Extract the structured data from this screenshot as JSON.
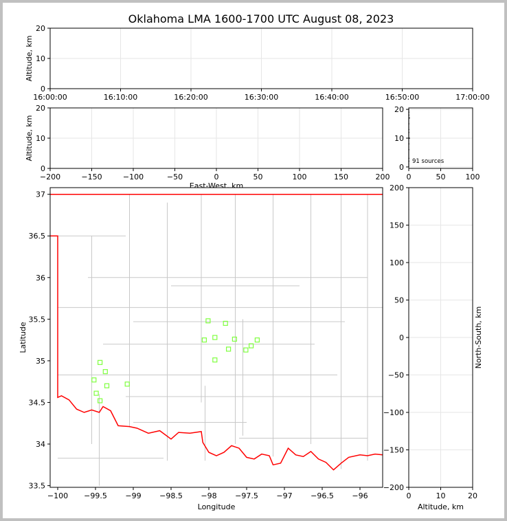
{
  "figure": {
    "title": "Oklahoma LMA 1600-1700 UTC August 08, 2023"
  },
  "chart_data": [
    {
      "panel": "altitude-time",
      "type": "scatter",
      "title": "Oklahoma LMA 1600-1700 UTC August 08, 2023",
      "xlabel": "",
      "ylabel": "Altitude, km",
      "xlim": [
        "16:00:00",
        "17:00:00"
      ],
      "ylim": [
        0,
        20
      ],
      "xticks": [
        "16:00:00",
        "16:10:00",
        "16:20:00",
        "16:30:00",
        "16:40:00",
        "16:50:00",
        "17:00:00"
      ],
      "yticks": [
        0,
        10,
        20
      ],
      "grid": true,
      "points": []
    },
    {
      "panel": "east-west-altitude",
      "type": "scatter",
      "xlabel": "East-West, km",
      "ylabel": "Altitude, km",
      "xlim": [
        -200,
        200
      ],
      "ylim": [
        0,
        20
      ],
      "xticks": [
        -200,
        -150,
        -100,
        -50,
        0,
        50,
        100,
        150,
        200
      ],
      "yticks": [
        0,
        10,
        20
      ],
      "grid": true,
      "points": []
    },
    {
      "panel": "altitude-histogram",
      "type": "line",
      "xlim": [
        0,
        100
      ],
      "ylim": [
        0,
        20
      ],
      "xticks": [
        0,
        50,
        100
      ],
      "yticks": [
        0,
        10,
        20
      ],
      "annotation": "91 sources",
      "grid": true,
      "counts_by_altitude": [
        {
          "alt": 2,
          "count": 1
        },
        {
          "alt": 3,
          "count": 1
        },
        {
          "alt": 6,
          "count": 1
        },
        {
          "alt": 8,
          "count": 1
        },
        {
          "alt": 10,
          "count": 2
        },
        {
          "alt": 12,
          "count": 1
        },
        {
          "alt": 13,
          "count": 1
        },
        {
          "alt": 15,
          "count": 1
        },
        {
          "alt": 17,
          "count": 2
        },
        {
          "alt": 18,
          "count": 1
        },
        {
          "alt": 19,
          "count": 1
        }
      ]
    },
    {
      "panel": "plan-view-map",
      "type": "scatter",
      "xlabel": "Longitude",
      "ylabel": "Latitude",
      "xlim": [
        -100.1,
        -95.7
      ],
      "ylim": [
        33.5,
        37.1
      ],
      "xticks": [
        -100.0,
        -99.5,
        -99.0,
        -98.5,
        -98.0,
        -97.5,
        -97.0,
        -96.5,
        -96.0
      ],
      "yticks": [
        33.5,
        34.0,
        34.5,
        35.0,
        35.5,
        36.0,
        36.5,
        37.0
      ],
      "marker_color": "#7fff3f",
      "state_border_color": "#ff0000",
      "county_line_color": "#c8c8c8",
      "points": [
        {
          "lon": -98.01,
          "lat": 35.48
        },
        {
          "lon": -97.78,
          "lat": 35.45
        },
        {
          "lon": -98.06,
          "lat": 35.25
        },
        {
          "lon": -97.92,
          "lat": 35.28
        },
        {
          "lon": -97.66,
          "lat": 35.26
        },
        {
          "lon": -97.36,
          "lat": 35.25
        },
        {
          "lon": -97.74,
          "lat": 35.14
        },
        {
          "lon": -97.51,
          "lat": 35.13
        },
        {
          "lon": -97.44,
          "lat": 35.18
        },
        {
          "lon": -97.92,
          "lat": 35.01
        },
        {
          "lon": -99.44,
          "lat": 34.98
        },
        {
          "lon": -99.37,
          "lat": 34.87
        },
        {
          "lon": -99.52,
          "lat": 34.77
        },
        {
          "lon": -99.35,
          "lat": 34.7
        },
        {
          "lon": -99.08,
          "lat": 34.72
        },
        {
          "lon": -99.49,
          "lat": 34.61
        },
        {
          "lon": -99.44,
          "lat": 34.52
        }
      ]
    },
    {
      "panel": "north-south-altitude",
      "type": "scatter",
      "xlabel": "Altitude, km",
      "ylabel": "North-South, km",
      "xlim": [
        0,
        20
      ],
      "ylim": [
        -200,
        200
      ],
      "xticks": [
        0,
        10,
        20
      ],
      "yticks": [
        -200,
        -150,
        -100,
        -50,
        0,
        50,
        100,
        150,
        200
      ],
      "grid": true,
      "points": []
    }
  ]
}
